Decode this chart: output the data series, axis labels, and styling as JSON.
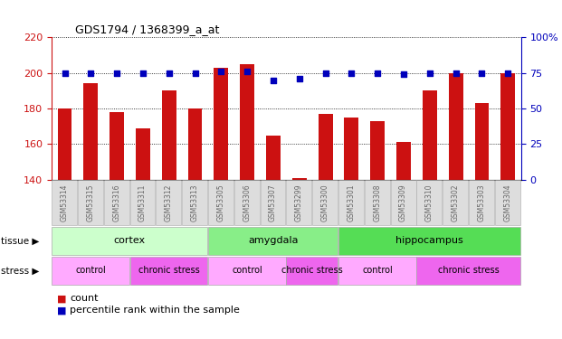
{
  "title": "GDS1794 / 1368399_a_at",
  "samples": [
    "GSM53314",
    "GSM53315",
    "GSM53316",
    "GSM53311",
    "GSM53312",
    "GSM53313",
    "GSM53305",
    "GSM53306",
    "GSM53307",
    "GSM53299",
    "GSM53300",
    "GSM53301",
    "GSM53308",
    "GSM53309",
    "GSM53310",
    "GSM53302",
    "GSM53303",
    "GSM53304"
  ],
  "counts": [
    180,
    194,
    178,
    169,
    190,
    180,
    203,
    205,
    165,
    141,
    177,
    175,
    173,
    161,
    190,
    200,
    183,
    200
  ],
  "percentiles": [
    75,
    75,
    75,
    75,
    75,
    75,
    76,
    76,
    70,
    71,
    75,
    75,
    75,
    74,
    75,
    75,
    75,
    75
  ],
  "ylim_left": [
    140,
    220
  ],
  "ylim_right": [
    0,
    100
  ],
  "yticks_left": [
    140,
    160,
    180,
    200,
    220
  ],
  "yticks_right": [
    0,
    25,
    50,
    75,
    100
  ],
  "tissue_groups": [
    {
      "label": "cortex",
      "start": 0,
      "end": 6,
      "color": "#ccffcc"
    },
    {
      "label": "amygdala",
      "start": 6,
      "end": 11,
      "color": "#88ee88"
    },
    {
      "label": "hippocampus",
      "start": 11,
      "end": 18,
      "color": "#55dd55"
    }
  ],
  "stress_groups": [
    {
      "label": "control",
      "start": 0,
      "end": 3,
      "color": "#ffaaff"
    },
    {
      "label": "chronic stress",
      "start": 3,
      "end": 6,
      "color": "#ee66ee"
    },
    {
      "label": "control",
      "start": 6,
      "end": 9,
      "color": "#ffaaff"
    },
    {
      "label": "chronic stress",
      "start": 9,
      "end": 11,
      "color": "#ee66ee"
    },
    {
      "label": "control",
      "start": 11,
      "end": 14,
      "color": "#ffaaff"
    },
    {
      "label": "chronic stress",
      "start": 14,
      "end": 18,
      "color": "#ee66ee"
    }
  ],
  "bar_color": "#cc1111",
  "dot_color": "#0000bb",
  "bar_width": 0.55,
  "tick_label_color": "#666666",
  "left_axis_color": "#cc1111",
  "right_axis_color": "#0000bb",
  "tissue_label": "tissue",
  "stress_label": "stress",
  "legend_count": "count",
  "legend_pct": "percentile rank within the sample",
  "bg_color": "#ffffff",
  "plot_bg_color": "#ffffff"
}
